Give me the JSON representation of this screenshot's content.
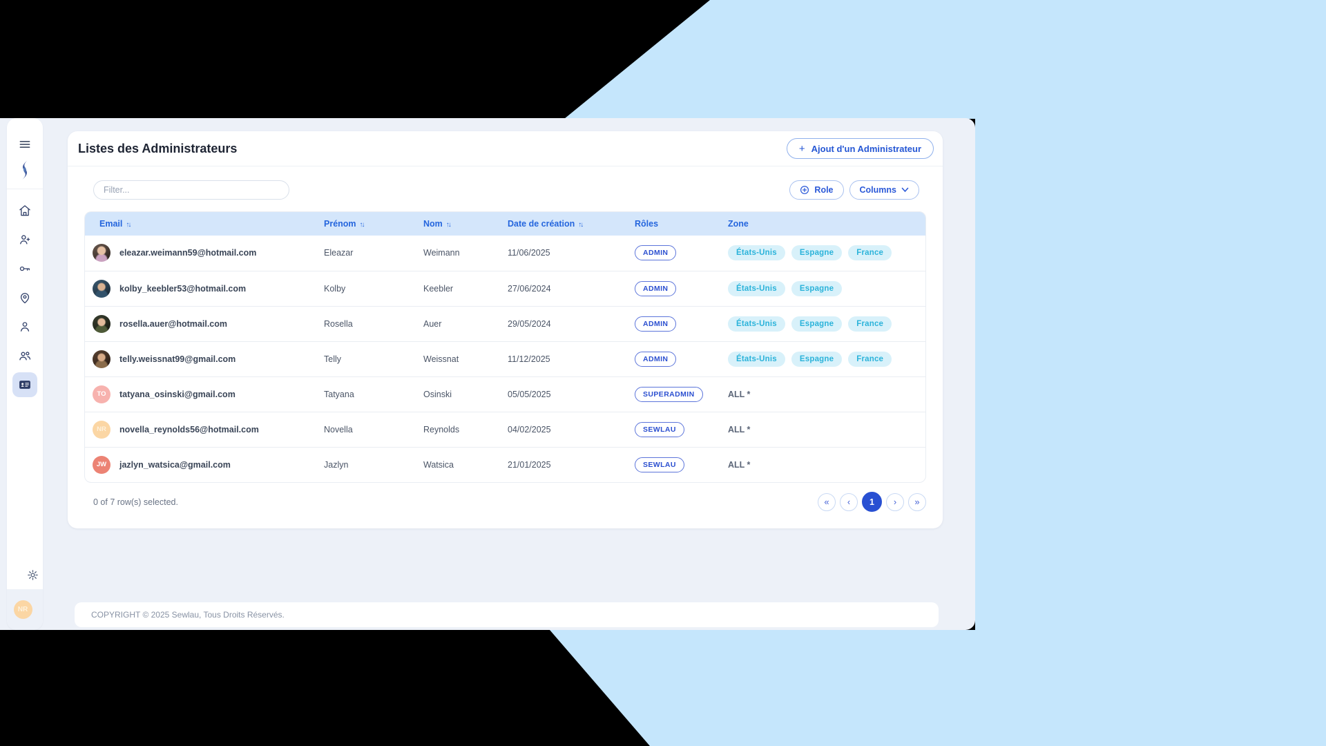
{
  "page": {
    "title": "Listes des Administrateurs",
    "add_admin_button": "Ajout d'un Administrateur",
    "add_plus": "+",
    "footer_copyright": "COPYRIGHT © 2025 Sewlau, Tous Droits Réservés."
  },
  "controls": {
    "filter_placeholder": "Filter...",
    "role_button": "Role",
    "columns_button": "Columns"
  },
  "sidebar": {
    "icons": [
      "menu-icon",
      "sewlau-logo",
      "home-icon",
      "user-plus-icon",
      "key-icon",
      "map-pin-icon",
      "user-icon",
      "users-icon",
      "id-card-icon",
      "settings-gear-icon"
    ],
    "active_item": "administrators",
    "user_initials": "NR"
  },
  "table": {
    "sort_icon": "↑↓",
    "columns": [
      {
        "label": "Email",
        "sortable": true
      },
      {
        "label": "Prénom",
        "sortable": true
      },
      {
        "label": "Nom",
        "sortable": true
      },
      {
        "label": "Date de création",
        "sortable": true
      },
      {
        "label": "Rôles",
        "sortable": false
      },
      {
        "label": "Zone",
        "sortable": false
      }
    ],
    "rows": [
      {
        "email": "eleazar.weimann59@hotmail.com",
        "prenom": "Eleazar",
        "nom": "Weimann",
        "date": "11/06/2025",
        "role": "ADMIN",
        "zones": [
          "États-Unis",
          "Espagne",
          "France"
        ],
        "avatar": {
          "type": "photo",
          "key": "photo-1"
        }
      },
      {
        "email": "kolby_keebler53@hotmail.com",
        "prenom": "Kolby",
        "nom": "Keebler",
        "date": "27/06/2024",
        "role": "ADMIN",
        "zones": [
          "États-Unis",
          "Espagne"
        ],
        "avatar": {
          "type": "photo",
          "key": "photo-2"
        }
      },
      {
        "email": "rosella.auer@hotmail.com",
        "prenom": "Rosella",
        "nom": "Auer",
        "date": "29/05/2024",
        "role": "ADMIN",
        "zones": [
          "États-Unis",
          "Espagne",
          "France"
        ],
        "avatar": {
          "type": "photo",
          "key": "photo-3"
        }
      },
      {
        "email": "telly.weissnat99@gmail.com",
        "prenom": "Telly",
        "nom": "Weissnat",
        "date": "11/12/2025",
        "role": "ADMIN",
        "zones": [
          "États-Unis",
          "Espagne",
          "France"
        ],
        "avatar": {
          "type": "photo",
          "key": "photo-4"
        }
      },
      {
        "email": "tatyana_osinski@gmail.com",
        "prenom": "Tatyana",
        "nom": "Osinski",
        "date": "05/05/2025",
        "role": "SUPERADMIN",
        "zone_text": "ALL *",
        "avatar": {
          "type": "initials",
          "initials": "TO",
          "bg": "#f7b2ae",
          "fg": "#ffffff"
        }
      },
      {
        "email": "novella_reynolds56@hotmail.com",
        "prenom": "Novella",
        "nom": "Reynolds",
        "date": "04/02/2025",
        "role": "SEWLAU",
        "zone_text": "ALL *",
        "avatar": {
          "type": "initials",
          "initials": "NR",
          "bg": "#fbd6a4",
          "fg": "#fdf1dc"
        }
      },
      {
        "email": "jazlyn_watsica@gmail.com",
        "prenom": "Jazlyn",
        "nom": "Watsica",
        "date": "21/01/2025",
        "role": "SEWLAU",
        "zone_text": "ALL *",
        "avatar": {
          "type": "initials",
          "initials": "JW",
          "bg": "#ec8374",
          "fg": "#ffffff"
        }
      }
    ],
    "selection_status": "0 of 7 row(s) selected."
  },
  "pagination": {
    "first": "«",
    "prev": "‹",
    "page": "1",
    "next": "›",
    "last": "»"
  },
  "colors": {
    "background_black": "#000000",
    "background_blue": "#c5e6fc",
    "app_background": "#edf1f8",
    "accent_blue": "#2456d4",
    "table_header_bg": "#d4e6fb",
    "table_header_text": "#2465dd",
    "role_badge_border": "#5b74da",
    "zone_badge_bg": "#d8f1fa",
    "zone_badge_text": "#2bb3da",
    "active_nav_bg": "#d7e1f6",
    "pagination_active_bg": "#2950d2"
  }
}
